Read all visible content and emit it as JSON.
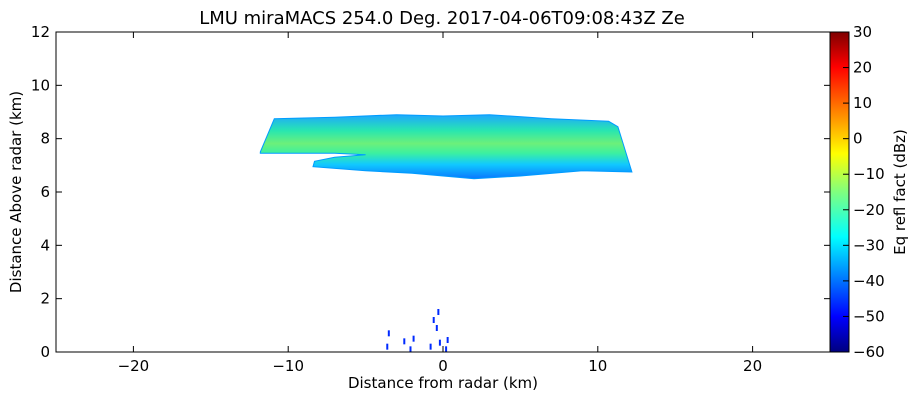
{
  "chart_data": {
    "type": "heatmap",
    "title": "LMU miraMACS 254.0 Deg. 2017-04-06T09:08:43Z  Ze",
    "xlabel": "Distance from radar (km)",
    "ylabel": "Distance Above radar  (km)",
    "xlim": [
      -25,
      25
    ],
    "ylim": [
      0,
      12
    ],
    "xticks": [
      -20,
      -10,
      0,
      10,
      20
    ],
    "yticks": [
      0,
      2,
      4,
      6,
      8,
      10,
      12
    ],
    "grid": false,
    "colorbar": {
      "label": "Eq refl fact (dBz)",
      "range": [
        -60,
        30
      ],
      "ticks": [
        -60,
        -50,
        -40,
        -30,
        -20,
        -10,
        0,
        10,
        20,
        30
      ],
      "colormap": "jet"
    },
    "features": [
      {
        "name": "cloud layer",
        "outline_km": [
          [
            -11.8,
            7.5
          ],
          [
            -10.9,
            8.75
          ],
          [
            -7,
            8.8
          ],
          [
            -3,
            8.9
          ],
          [
            0,
            8.85
          ],
          [
            3,
            8.9
          ],
          [
            7,
            8.75
          ],
          [
            10.7,
            8.65
          ],
          [
            11.3,
            8.45
          ],
          [
            12.2,
            6.75
          ],
          [
            9,
            6.8
          ],
          [
            5,
            6.6
          ],
          [
            2,
            6.5
          ],
          [
            -2,
            6.7
          ],
          [
            -5,
            6.8
          ],
          [
            -8.4,
            6.95
          ],
          [
            -8.3,
            7.15
          ],
          [
            -7,
            7.3
          ],
          [
            -5,
            7.4
          ],
          [
            -7,
            7.45
          ],
          [
            -11.8,
            7.45
          ]
        ],
        "typical_dBz": -25,
        "min_dBz": -35,
        "max_dBz": -20
      },
      {
        "name": "ground clutter",
        "points_km": [
          [
            -3.6,
            0.2
          ],
          [
            -3.5,
            0.7
          ],
          [
            -2.5,
            0.4
          ],
          [
            -2.1,
            0.1
          ],
          [
            -1.9,
            0.5
          ],
          [
            -0.8,
            0.2
          ],
          [
            -0.6,
            1.2
          ],
          [
            -0.4,
            0.9
          ],
          [
            -0.3,
            1.5
          ],
          [
            -0.2,
            0.35
          ],
          [
            0.2,
            0.1
          ],
          [
            0.3,
            0.45
          ]
        ],
        "typical_dBz": -45
      }
    ]
  }
}
